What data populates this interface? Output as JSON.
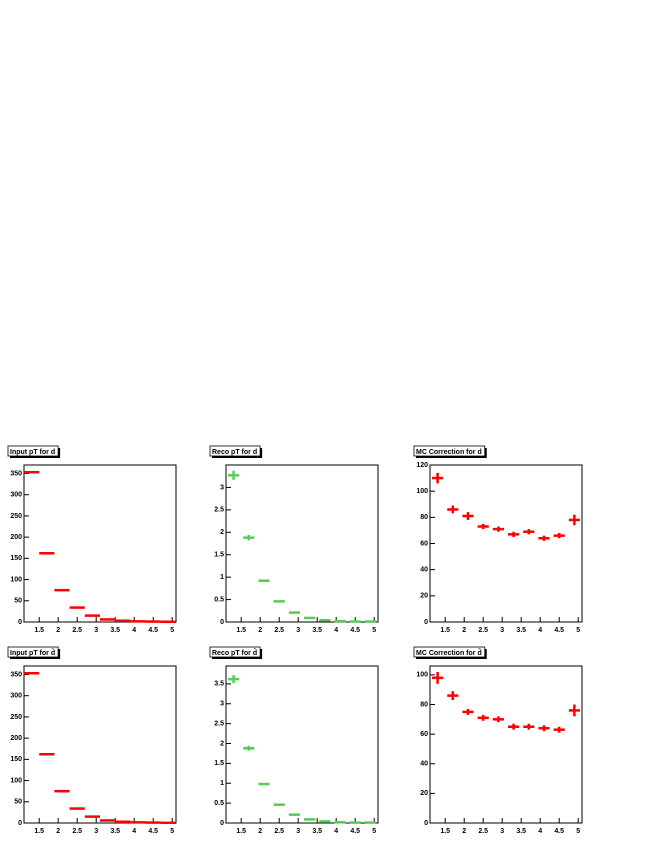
{
  "chart_data": [
    {
      "type": "histogram",
      "title": "Input pT for d",
      "color": "#ff0000",
      "bins": [
        1.1,
        1.5,
        1.9,
        2.3,
        2.7,
        3.1,
        3.5,
        3.9,
        4.3,
        4.7,
        5.1
      ],
      "values": [
        353,
        162,
        75,
        34,
        15,
        6,
        3,
        1.5,
        1,
        0.5
      ],
      "xlim": [
        1.1,
        5.1
      ],
      "xticks": [
        1.5,
        2,
        2.5,
        3,
        3.5,
        4,
        4.5,
        5
      ],
      "ylim": [
        0,
        370
      ],
      "yticks": [
        0,
        50,
        100,
        150,
        200,
        250,
        300,
        350
      ]
    },
    {
      "type": "histogram",
      "title": "Reco pT for d",
      "color": "#55cc55",
      "bins": [
        1.1,
        1.5,
        1.9,
        2.3,
        2.7,
        3.1,
        3.5,
        3.9,
        4.3,
        4.7,
        5.1
      ],
      "values": [
        3.27,
        1.88,
        0.92,
        0.46,
        0.21,
        0.09,
        0.04,
        0.02,
        0.01,
        0.01
      ],
      "errors": [
        0.1,
        0.06,
        0.02,
        0.01,
        0.01,
        0.01,
        0.01,
        0.01,
        0.01,
        0.01
      ],
      "xlim": [
        1.1,
        5.1
      ],
      "xticks": [
        1.5,
        2,
        2.5,
        3,
        3.5,
        4,
        4.5,
        5
      ],
      "ylim": [
        0,
        3.5
      ],
      "yticks": [
        0,
        0.5,
        1,
        1.5,
        2,
        2.5,
        3
      ]
    },
    {
      "type": "histogram",
      "title": "MC Correction for d",
      "color": "#ff0000",
      "bins": [
        1.1,
        1.5,
        1.9,
        2.3,
        2.7,
        3.1,
        3.5,
        3.9,
        4.3,
        4.7,
        5.1
      ],
      "values": [
        110,
        86,
        81,
        73,
        71,
        67,
        69,
        64,
        66,
        78
      ],
      "errors": [
        4,
        3,
        3,
        2,
        2,
        2,
        2,
        2,
        2,
        4
      ],
      "xlim": [
        1.1,
        5.1
      ],
      "xticks": [
        1.5,
        2,
        2.5,
        3,
        3.5,
        4,
        4.5,
        5
      ],
      "ylim": [
        0,
        120
      ],
      "yticks": [
        0,
        20,
        40,
        60,
        80,
        100,
        120
      ]
    },
    {
      "type": "histogram",
      "title": "Input pT for d̄",
      "color": "#ff0000",
      "bins": [
        1.1,
        1.5,
        1.9,
        2.3,
        2.7,
        3.1,
        3.5,
        3.9,
        4.3,
        4.7,
        5.1
      ],
      "values": [
        353,
        162,
        75,
        34,
        15,
        6,
        3,
        1.5,
        1,
        0.5
      ],
      "xlim": [
        1.1,
        5.1
      ],
      "xticks": [
        1.5,
        2,
        2.5,
        3,
        3.5,
        4,
        4.5,
        5
      ],
      "ylim": [
        0,
        370
      ],
      "yticks": [
        0,
        50,
        100,
        150,
        200,
        250,
        300,
        350
      ]
    },
    {
      "type": "histogram",
      "title": "Reco pT for d̄",
      "color": "#55cc55",
      "bins": [
        1.1,
        1.5,
        1.9,
        2.3,
        2.7,
        3.1,
        3.5,
        3.9,
        4.3,
        4.7,
        5.1
      ],
      "values": [
        3.62,
        1.88,
        0.98,
        0.46,
        0.21,
        0.09,
        0.04,
        0.02,
        0.01,
        0.01
      ],
      "errors": [
        0.1,
        0.06,
        0.02,
        0.01,
        0.01,
        0.01,
        0.01,
        0.01,
        0.01,
        0.01
      ],
      "xlim": [
        1.1,
        5.1
      ],
      "xticks": [
        1.5,
        2,
        2.5,
        3,
        3.5,
        4,
        4.5,
        5
      ],
      "ylim": [
        0,
        3.95
      ],
      "yticks": [
        0,
        0.5,
        1,
        1.5,
        2,
        2.5,
        3,
        3.5
      ]
    },
    {
      "type": "histogram",
      "title": "MC Correction for d̄",
      "color": "#ff0000",
      "bins": [
        1.1,
        1.5,
        1.9,
        2.3,
        2.7,
        3.1,
        3.5,
        3.9,
        4.3,
        4.7,
        5.1
      ],
      "values": [
        98,
        86,
        75,
        71,
        70,
        65,
        65,
        64,
        63,
        76
      ],
      "errors": [
        4,
        3,
        2,
        2,
        2,
        2,
        2,
        2,
        2,
        4
      ],
      "xlim": [
        1.1,
        5.1
      ],
      "xticks": [
        1.5,
        2,
        2.5,
        3,
        3.5,
        4,
        4.5,
        5
      ],
      "ylim": [
        0,
        106
      ],
      "yticks": [
        0,
        20,
        40,
        60,
        80,
        100
      ]
    }
  ]
}
